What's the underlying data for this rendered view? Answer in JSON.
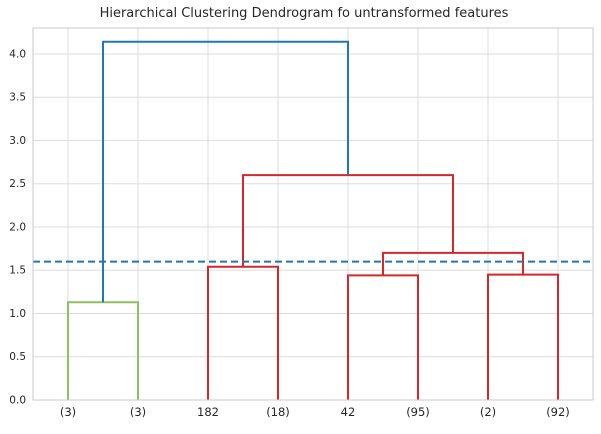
{
  "chart_data": {
    "type": "dendrogram",
    "title": "Hierarchical Clustering Dendrogram fo untransformed features",
    "xlabel": "",
    "ylabel": "",
    "ylim": [
      0,
      4.3
    ],
    "yticks": [
      "0.0",
      "0.5",
      "1.0",
      "1.5",
      "2.0",
      "2.5",
      "3.0",
      "3.5",
      "4.0"
    ],
    "ytick_values": [
      0,
      0.5,
      1.0,
      1.5,
      2.0,
      2.5,
      3.0,
      3.5,
      4.0
    ],
    "leaves": [
      "(3)",
      "(3)",
      "182",
      "(18)",
      "42",
      "(95)",
      "(2)",
      "(92)"
    ],
    "grid": true,
    "threshold": {
      "y": 1.6,
      "color": "#1f77b4",
      "style": "dashed"
    },
    "links": [
      {
        "id": "green-cluster",
        "x": [
          0,
          0,
          1,
          1
        ],
        "y": [
          0.0,
          1.13,
          1.13,
          0.0
        ],
        "color": "#8dc05f"
      },
      {
        "id": "red-a",
        "x": [
          2,
          2,
          3,
          3
        ],
        "y": [
          0.0,
          1.54,
          1.54,
          0.0
        ],
        "color": "#d62728"
      },
      {
        "id": "red-b",
        "x": [
          4,
          4,
          5,
          5
        ],
        "y": [
          0.0,
          1.44,
          1.44,
          0.0
        ],
        "color": "#d62728"
      },
      {
        "id": "red-c",
        "x": [
          6,
          6,
          7,
          7
        ],
        "y": [
          0.0,
          1.45,
          1.45,
          0.0
        ],
        "color": "#d62728"
      },
      {
        "id": "red-bc",
        "x": [
          4.5,
          4.5,
          6.5,
          6.5
        ],
        "y": [
          1.44,
          1.7,
          1.7,
          1.45
        ],
        "color": "#d62728"
      },
      {
        "id": "red-top",
        "x": [
          2.5,
          2.5,
          5.5,
          5.5
        ],
        "y": [
          1.54,
          2.6,
          2.6,
          1.7
        ],
        "color": "#d62728"
      },
      {
        "id": "blue-root",
        "x": [
          0.5,
          0.5,
          4.0,
          4.0
        ],
        "y": [
          1.13,
          4.14,
          4.14,
          2.6
        ],
        "color": "#1f77b4"
      }
    ],
    "colors": {
      "grid": "#dddddd",
      "frame": "#c8c8c8",
      "text": "#262626"
    }
  }
}
